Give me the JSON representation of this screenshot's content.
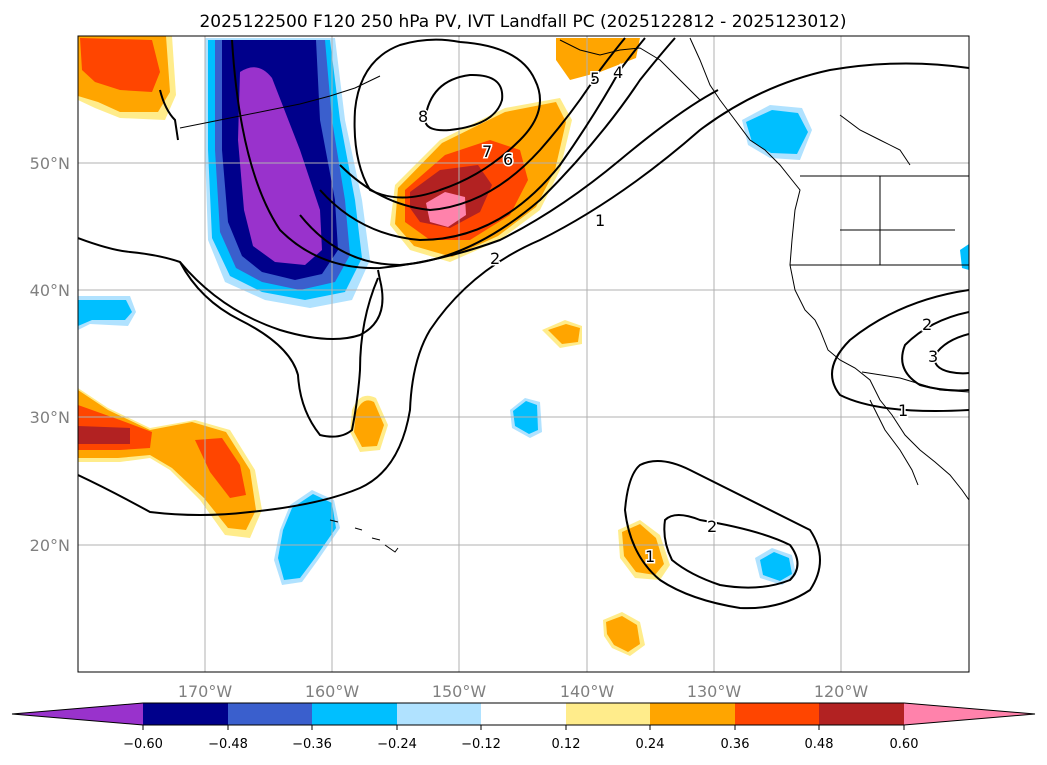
{
  "title": "2025122500 F120 250 hPa PV, IVT Landfall PC (2025122812 - 2025123012)",
  "chart_data": {
    "type": "map",
    "projection": "plate-carree",
    "lon_range": [
      -180,
      -110
    ],
    "lat_range": [
      10,
      60
    ],
    "grid": true,
    "lon_ticks": [
      -170,
      -160,
      -150,
      -140,
      -130,
      -120
    ],
    "lat_ticks": [
      20,
      30,
      40,
      50
    ],
    "lon_tick_labels": [
      "170°W",
      "160°W",
      "150°W",
      "140°W",
      "130°W",
      "120°W"
    ],
    "lat_tick_labels": [
      "20°N",
      "30°N",
      "40°N",
      "50°N"
    ],
    "fill_field": "250 hPa PV",
    "contour_field": "IVT Landfall PC",
    "contour_labels": [
      "8",
      "7",
      "6",
      "5",
      "4",
      "2",
      "1",
      "2",
      "1",
      "2",
      "3",
      "1"
    ],
    "colorbar": {
      "ticks": [
        "−0.60",
        "−0.48",
        "−0.36",
        "−0.24",
        "−0.12",
        "0.12",
        "0.24",
        "0.36",
        "0.48",
        "0.60"
      ],
      "colors": [
        "#9932cc",
        "#00008b",
        "#3a5fcd",
        "#00bfff",
        "#b0e2ff",
        "#ffffff",
        "#ffec8b",
        "#ffa500",
        "#ff4500",
        "#b22222",
        "#ff82ab"
      ],
      "extend": "both"
    }
  }
}
